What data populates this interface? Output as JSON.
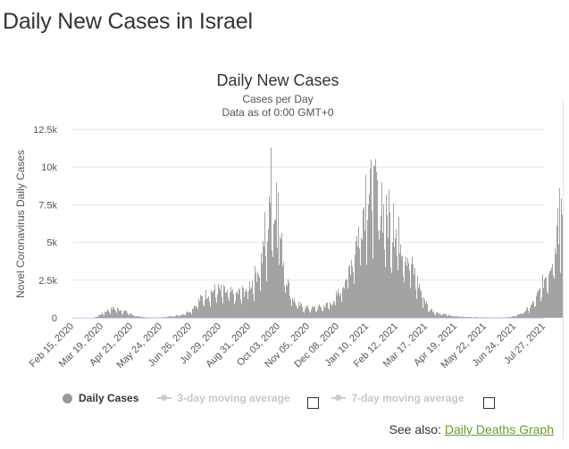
{
  "page": {
    "title": "Daily New Cases in Israel"
  },
  "chart_data": {
    "type": "bar",
    "title": "Daily New Cases",
    "subtitle_1": "Cases per Day",
    "subtitle_2": "Data as of 0:00 GMT+0",
    "ylabel": "Novel Coronavirus Daily Cases",
    "ylim": [
      0,
      12500
    ],
    "y_ticks": [
      "0",
      "2.5k",
      "5k",
      "7.5k",
      "10k",
      "12.5k"
    ],
    "y_tick_values": [
      0,
      2500,
      5000,
      7500,
      10000,
      12500
    ],
    "x_tick_labels": [
      "Feb 15, 2020",
      "Mar 19, 2020",
      "Apr 21, 2020",
      "May 24, 2020",
      "Jun 26, 2020",
      "Jul 29, 2020",
      "Aug 31, 2020",
      "Oct 03, 2020",
      "Nov 05, 2020",
      "Dec 08, 2020",
      "Jan 10, 2021",
      "Feb 12, 2021",
      "Mar 17, 2021",
      "Apr 19, 2021",
      "May 22, 2021",
      "Jun 24, 2021",
      "Jul 27, 2021"
    ],
    "start_date": "Feb 15, 2020",
    "series": [
      {
        "name": "Daily Cases",
        "color": "#999999",
        "keypoints": [
          [
            "Feb 15, 2020",
            0
          ],
          [
            "Mar 10, 2020",
            0
          ],
          [
            "Mar 18, 2020",
            250
          ],
          [
            "Mar 25, 2020",
            500
          ],
          [
            "Apr 01, 2020",
            650
          ],
          [
            "Apr 08, 2020",
            550
          ],
          [
            "Apr 15, 2020",
            400
          ],
          [
            "Apr 22, 2020",
            200
          ],
          [
            "Apr 29, 2020",
            80
          ],
          [
            "May 10, 2020",
            20
          ],
          [
            "May 24, 2020",
            20
          ],
          [
            "Jun 04, 2020",
            100
          ],
          [
            "Jun 15, 2020",
            200
          ],
          [
            "Jun 26, 2020",
            500
          ],
          [
            "Jul 06, 2020",
            1200
          ],
          [
            "Jul 16, 2020",
            1700
          ],
          [
            "Jul 26, 2020",
            1900
          ],
          [
            "Aug 05, 2020",
            1700
          ],
          [
            "Aug 15, 2020",
            1600
          ],
          [
            "Aug 25, 2020",
            1800
          ],
          [
            "Sep 04, 2020",
            2500
          ],
          [
            "Sep 14, 2020",
            4000
          ],
          [
            "Sep 20, 2020",
            5500
          ],
          [
            "Sep 24, 2020",
            8000
          ],
          [
            "Sep 29, 2020",
            6500
          ],
          [
            "Oct 04, 2020",
            5500
          ],
          [
            "Oct 09, 2020",
            3500
          ],
          [
            "Oct 14, 2020",
            2000
          ],
          [
            "Oct 21, 2020",
            1000
          ],
          [
            "Oct 31, 2020",
            700
          ],
          [
            "Nov 10, 2020",
            650
          ],
          [
            "Nov 20, 2020",
            750
          ],
          [
            "Dec 01, 2020",
            1000
          ],
          [
            "Dec 10, 2020",
            1800
          ],
          [
            "Dec 20, 2020",
            3200
          ],
          [
            "Dec 30, 2020",
            5500
          ],
          [
            "Jan 06, 2021",
            7500
          ],
          [
            "Jan 12, 2021",
            8500
          ],
          [
            "Jan 18, 2021",
            8600
          ],
          [
            "Jan 25, 2021",
            7500
          ],
          [
            "Feb 01, 2021",
            6500
          ],
          [
            "Feb 10, 2021",
            6000
          ],
          [
            "Feb 18, 2021",
            5000
          ],
          [
            "Feb 25, 2021",
            4000
          ],
          [
            "Mar 05, 2021",
            2800
          ],
          [
            "Mar 12, 2021",
            1600
          ],
          [
            "Mar 19, 2021",
            700
          ],
          [
            "Mar 26, 2021",
            400
          ],
          [
            "Apr 05, 2021",
            250
          ],
          [
            "Apr 15, 2021",
            120
          ],
          [
            "Apr 30, 2021",
            60
          ],
          [
            "May 15, 2021",
            30
          ],
          [
            "May 31, 2021",
            15
          ],
          [
            "Jun 12, 2021",
            15
          ],
          [
            "Jun 20, 2021",
            60
          ],
          [
            "Jun 27, 2021",
            200
          ],
          [
            "Jul 04, 2021",
            400
          ],
          [
            "Jul 11, 2021",
            700
          ],
          [
            "Jul 18, 2021",
            1300
          ],
          [
            "Jul 25, 2021",
            2300
          ],
          [
            "Aug 01, 2021",
            3300
          ],
          [
            "Aug 08, 2021",
            5000
          ],
          [
            "Aug 13, 2021",
            6500
          ],
          [
            "Aug 17, 2021",
            7800
          ]
        ],
        "spikes": [
          [
            "Sep 24, 2020",
            11300
          ],
          [
            "Sep 30, 2020",
            9000
          ],
          [
            "Sep 17, 2020",
            7000
          ],
          [
            "Oct 02, 2020",
            8300
          ],
          [
            "Jan 13, 2021",
            9900
          ],
          [
            "Jan 17, 2021",
            10100
          ],
          [
            "Jan 20, 2021",
            9700
          ],
          [
            "Jan 08, 2021",
            9500
          ],
          [
            "Jan 26, 2021",
            9000
          ],
          [
            "Feb 03, 2021",
            8500
          ],
          [
            "Feb 08, 2021",
            7600
          ],
          [
            "Aug 13, 2021",
            8600
          ],
          [
            "Aug 15, 2021",
            7900
          ],
          [
            "Aug 11, 2021",
            7300
          ]
        ],
        "end_date": "Aug 17, 2021"
      },
      {
        "name": "3-day moving average",
        "visible": false
      },
      {
        "name": "7-day moving average",
        "visible": false
      }
    ]
  },
  "legend": {
    "daily_cases": "Daily Cases",
    "ma3": "3-day moving average",
    "ma7": "7-day moving average"
  },
  "footer": {
    "see_also_label": "See also:",
    "see_also_link": "Daily Deaths Graph"
  }
}
